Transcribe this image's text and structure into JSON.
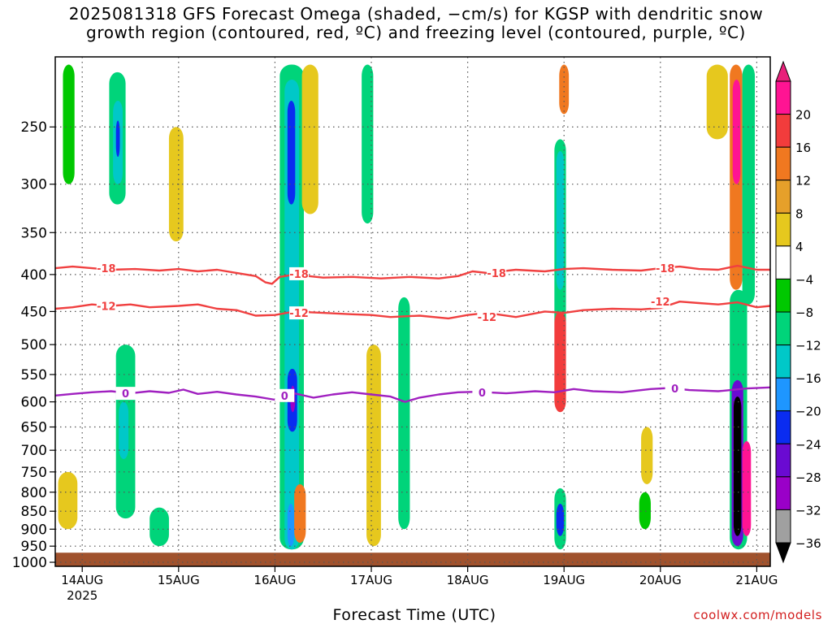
{
  "title": {
    "line1": "2025081318 GFS Forecast Omega (shaded, −cm/s) for KGSP with dendritic snow",
    "line2": "growth region (contoured, red, ºC) and freezing level (contoured, purple, ºC)"
  },
  "credit": "coolwx.com/models",
  "colors": {
    "ground": "#a0522d",
    "grid": "#555555",
    "dgz_contour": "#f04040",
    "freezing_contour": "#a020c0",
    "strong_up": "#000000"
  },
  "chart_data": {
    "type": "heatmap",
    "xlabel": "Forecast Time (UTC)",
    "ylabel": "",
    "x_ticks": [
      "14AUG",
      "15AUG",
      "16AUG",
      "17AUG",
      "18AUG",
      "19AUG",
      "20AUG",
      "21AUG"
    ],
    "x_year_label": "2025",
    "x_range_days": [
      -0.28,
      7.14
    ],
    "y_ticks": [
      250,
      300,
      350,
      400,
      450,
      500,
      550,
      600,
      650,
      700,
      750,
      800,
      850,
      900,
      950,
      1000
    ],
    "y_range_hpa": [
      200,
      1013
    ],
    "y_scale": "log-pressure",
    "grid": true,
    "colorbar": {
      "labels": [
        "20",
        "16",
        "12",
        "8",
        "4",
        "−4",
        "−8",
        "−12",
        "−16",
        "−20",
        "−24",
        "−28",
        "−32",
        "−36"
      ],
      "bins": [
        {
          "lo": 24,
          "hi": null,
          "color": "#e8207a"
        },
        {
          "lo": 20,
          "hi": 24,
          "color": "#ff1493"
        },
        {
          "lo": 16,
          "hi": 20,
          "color": "#f23c3c"
        },
        {
          "lo": 12,
          "hi": 16,
          "color": "#f07820"
        },
        {
          "lo": 8,
          "hi": 12,
          "color": "#e6a02a"
        },
        {
          "lo": 4,
          "hi": 8,
          "color": "#e6c81e"
        },
        {
          "lo": -4,
          "hi": 4,
          "color": "#ffffff"
        },
        {
          "lo": -8,
          "hi": -4,
          "color": "#00c800"
        },
        {
          "lo": -12,
          "hi": -8,
          "color": "#00d47a"
        },
        {
          "lo": -16,
          "hi": -12,
          "color": "#00c8c8"
        },
        {
          "lo": -20,
          "hi": -16,
          "color": "#1e96ff"
        },
        {
          "lo": -24,
          "hi": -20,
          "color": "#0a2cf0"
        },
        {
          "lo": -28,
          "hi": -24,
          "color": "#6a0ad2"
        },
        {
          "lo": -32,
          "hi": -28,
          "color": "#9a00c8"
        },
        {
          "lo": -36,
          "hi": -32,
          "color": "#a0a0a0"
        },
        {
          "lo": null,
          "hi": -36,
          "color": "#000000"
        }
      ]
    },
    "contours": [
      {
        "level": "-18",
        "color": "#f04040",
        "x_days": [
          -0.28,
          -0.1,
          0.1,
          0.3,
          0.55,
          0.8,
          1.0,
          1.2,
          1.4,
          1.6,
          1.8,
          1.9,
          1.97,
          2.05,
          2.2,
          2.5,
          2.8,
          3.1,
          3.4,
          3.7,
          3.9,
          4.05,
          4.2,
          4.5,
          4.8,
          5.0,
          5.2,
          5.5,
          5.8,
          6.0,
          6.2,
          6.4,
          6.6,
          6.8,
          7.0,
          7.14
        ],
        "p_hpa": [
          392,
          390,
          392,
          394,
          393,
          395,
          393,
          396,
          394,
          398,
          402,
          410,
          412,
          403,
          400,
          404,
          403,
          405,
          403,
          405,
          402,
          396,
          398,
          394,
          396,
          393,
          392,
          394,
          395,
          392,
          390,
          393,
          394,
          389,
          394,
          394
        ]
      },
      {
        "level": "-12",
        "color": "#f04040",
        "x_days": [
          -0.28,
          -0.1,
          0.1,
          0.3,
          0.5,
          0.7,
          1.0,
          1.2,
          1.4,
          1.6,
          1.8,
          2.0,
          2.2,
          2.5,
          2.8,
          3.0,
          3.2,
          3.5,
          3.8,
          4.0,
          4.2,
          4.5,
          4.8,
          5.0,
          5.2,
          5.5,
          5.8,
          6.0,
          6.2,
          6.4,
          6.6,
          6.8,
          7.0,
          7.14
        ],
        "p_hpa": [
          446,
          444,
          440,
          442,
          440,
          444,
          442,
          440,
          446,
          448,
          456,
          455,
          450,
          452,
          454,
          455,
          458,
          456,
          460,
          455,
          452,
          458,
          450,
          452,
          448,
          446,
          447,
          445,
          436,
          438,
          440,
          437,
          444,
          442
        ]
      },
      {
        "level": "0",
        "color": "#a020c0",
        "x_days": [
          -0.28,
          -0.1,
          0.1,
          0.3,
          0.5,
          0.7,
          0.9,
          1.05,
          1.2,
          1.4,
          1.6,
          1.8,
          2.0,
          2.1,
          2.2,
          2.4,
          2.6,
          2.8,
          3.0,
          3.2,
          3.35,
          3.5,
          3.7,
          3.9,
          4.1,
          4.4,
          4.7,
          4.9,
          5.1,
          5.3,
          5.6,
          5.9,
          6.1,
          6.3,
          6.6,
          6.9,
          7.14
        ],
        "p_hpa": [
          588,
          585,
          582,
          580,
          584,
          580,
          583,
          577,
          585,
          581,
          586,
          590,
          596,
          588,
          584,
          592,
          586,
          582,
          586,
          590,
          600,
          592,
          586,
          582,
          581,
          584,
          580,
          582,
          576,
          580,
          582,
          576,
          574,
          578,
          580,
          575,
          573
        ]
      }
    ],
    "contour_labels": [
      {
        "text": "-18",
        "x_days": 0.25,
        "p_hpa": 392
      },
      {
        "text": "-18",
        "x_days": 2.25,
        "p_hpa": 399
      },
      {
        "text": "-18",
        "x_days": 4.3,
        "p_hpa": 398
      },
      {
        "text": "-18",
        "x_days": 6.05,
        "p_hpa": 392
      },
      {
        "text": "-12",
        "x_days": 0.25,
        "p_hpa": 442
      },
      {
        "text": "-12",
        "x_days": 2.25,
        "p_hpa": 452
      },
      {
        "text": "-12",
        "x_days": 4.2,
        "p_hpa": 458
      },
      {
        "text": "-12",
        "x_days": 6.0,
        "p_hpa": 436
      },
      {
        "text": "0",
        "x_days": 0.45,
        "p_hpa": 584
      },
      {
        "text": "0",
        "x_days": 2.1,
        "p_hpa": 588
      },
      {
        "text": "0",
        "x_days": 4.15,
        "p_hpa": 582
      },
      {
        "text": "0",
        "x_days": 6.15,
        "p_hpa": 575
      }
    ],
    "omega_features": [
      {
        "label": "weak ascent",
        "omega": -6,
        "x_days": [
          -0.2,
          -0.08
        ],
        "p_hpa": [
          205,
          300
        ]
      },
      {
        "label": "ascent",
        "omega": -10,
        "x_days": [
          0.28,
          0.45
        ],
        "p_hpa": [
          210,
          320
        ]
      },
      {
        "label": "ascent core",
        "omega": -14,
        "x_days": [
          0.32,
          0.42
        ],
        "p_hpa": [
          230,
          300
        ]
      },
      {
        "label": "strong ascent",
        "omega": -22,
        "x_days": [
          0.35,
          0.39
        ],
        "p_hpa": [
          245,
          275
        ]
      },
      {
        "label": "ascent",
        "omega": -10,
        "x_days": [
          0.35,
          0.55
        ],
        "p_hpa": [
          500,
          870
        ]
      },
      {
        "label": "ascent core",
        "omega": -14,
        "x_days": [
          0.38,
          0.48
        ],
        "p_hpa": [
          600,
          720
        ]
      },
      {
        "label": "weak subsidence",
        "omega": 6,
        "x_days": [
          -0.25,
          -0.05
        ],
        "p_hpa": [
          750,
          900
        ]
      },
      {
        "label": "weak subsidence",
        "omega": 6,
        "x_days": [
          0.9,
          1.05
        ],
        "p_hpa": [
          250,
          360
        ]
      },
      {
        "label": "ascent",
        "omega": -9,
        "x_days": [
          0.7,
          0.9
        ],
        "p_hpa": [
          840,
          950
        ]
      },
      {
        "label": "ascent",
        "omega": -9,
        "x_days": [
          2.05,
          2.3
        ],
        "p_hpa": [
          205,
          960
        ]
      },
      {
        "label": "ascent core",
        "omega": -14,
        "x_days": [
          2.1,
          2.25
        ],
        "p_hpa": [
          215,
          960
        ]
      },
      {
        "label": "strong ascent",
        "omega": -22,
        "x_days": [
          2.13,
          2.21
        ],
        "p_hpa": [
          230,
          320
        ]
      },
      {
        "label": "strong ascent",
        "omega": -24,
        "x_days": [
          2.13,
          2.23
        ],
        "p_hpa": [
          540,
          660
        ]
      },
      {
        "label": "very strong ascent",
        "omega": -30,
        "x_days": [
          2.16,
          2.21
        ],
        "p_hpa": [
          570,
          620
        ]
      },
      {
        "label": "strong ascent",
        "omega": -20,
        "x_days": [
          2.13,
          2.2
        ],
        "p_hpa": [
          830,
          950
        ]
      },
      {
        "label": "subsidence",
        "omega": 12,
        "x_days": [
          2.2,
          2.32
        ],
        "p_hpa": [
          780,
          940
        ]
      },
      {
        "label": "weak subsidence",
        "omega": 6,
        "x_days": [
          2.28,
          2.45
        ],
        "p_hpa": [
          205,
          330
        ]
      },
      {
        "label": "ascent",
        "omega": -9,
        "x_days": [
          2.9,
          3.02
        ],
        "p_hpa": [
          205,
          340
        ]
      },
      {
        "label": "ascent",
        "omega": -9,
        "x_days": [
          3.28,
          3.4
        ],
        "p_hpa": [
          430,
          900
        ]
      },
      {
        "label": "weak subsidence",
        "omega": 6,
        "x_days": [
          2.95,
          3.1
        ],
        "p_hpa": [
          500,
          950
        ]
      },
      {
        "label": "ascent",
        "omega": -10,
        "x_days": [
          4.9,
          5.02
        ],
        "p_hpa": [
          260,
          480
        ]
      },
      {
        "label": "ascent core",
        "omega": -14,
        "x_days": [
          4.92,
          5.0
        ],
        "p_hpa": [
          270,
          420
        ]
      },
      {
        "label": "subsidence",
        "omega": 16,
        "x_days": [
          4.9,
          5.02
        ],
        "p_hpa": [
          450,
          620
        ]
      },
      {
        "label": "subsidence",
        "omega": 12,
        "x_days": [
          4.95,
          5.05
        ],
        "p_hpa": [
          205,
          240
        ]
      },
      {
        "label": "ascent",
        "omega": -12,
        "x_days": [
          4.9,
          5.02
        ],
        "p_hpa": [
          790,
          960
        ]
      },
      {
        "label": "strong ascent",
        "omega": -24,
        "x_days": [
          4.92,
          5.0
        ],
        "p_hpa": [
          830,
          920
        ]
      },
      {
        "label": "weak subsidence",
        "omega": 6,
        "x_days": [
          5.8,
          5.92
        ],
        "p_hpa": [
          650,
          780
        ]
      },
      {
        "label": "ascent",
        "omega": -8,
        "x_days": [
          5.78,
          5.9
        ],
        "p_hpa": [
          800,
          900
        ]
      },
      {
        "label": "weak subsidence",
        "omega": 6,
        "x_days": [
          6.48,
          6.7
        ],
        "p_hpa": [
          205,
          260
        ]
      },
      {
        "label": "subsidence",
        "omega": 12,
        "x_days": [
          6.72,
          6.85
        ],
        "p_hpa": [
          205,
          420
        ]
      },
      {
        "label": "strong subsidence",
        "omega": 22,
        "x_days": [
          6.75,
          6.83
        ],
        "p_hpa": [
          215,
          300
        ]
      },
      {
        "label": "ascent",
        "omega": -12,
        "x_days": [
          6.72,
          6.9
        ],
        "p_hpa": [
          420,
          960
        ]
      },
      {
        "label": "strong ascent",
        "omega": -26,
        "x_days": [
          6.74,
          6.86
        ],
        "p_hpa": [
          560,
          950
        ]
      },
      {
        "label": "extreme ascent",
        "omega": -38,
        "x_days": [
          6.76,
          6.84
        ],
        "p_hpa": [
          590,
          920
        ]
      },
      {
        "label": "strong subsidence",
        "omega": 22,
        "x_days": [
          6.85,
          6.94
        ],
        "p_hpa": [
          680,
          920
        ]
      },
      {
        "label": "ascent",
        "omega": -9,
        "x_days": [
          6.85,
          6.98
        ],
        "p_hpa": [
          205,
          440
        ]
      }
    ],
    "surface_pressure_hpa": 970
  }
}
